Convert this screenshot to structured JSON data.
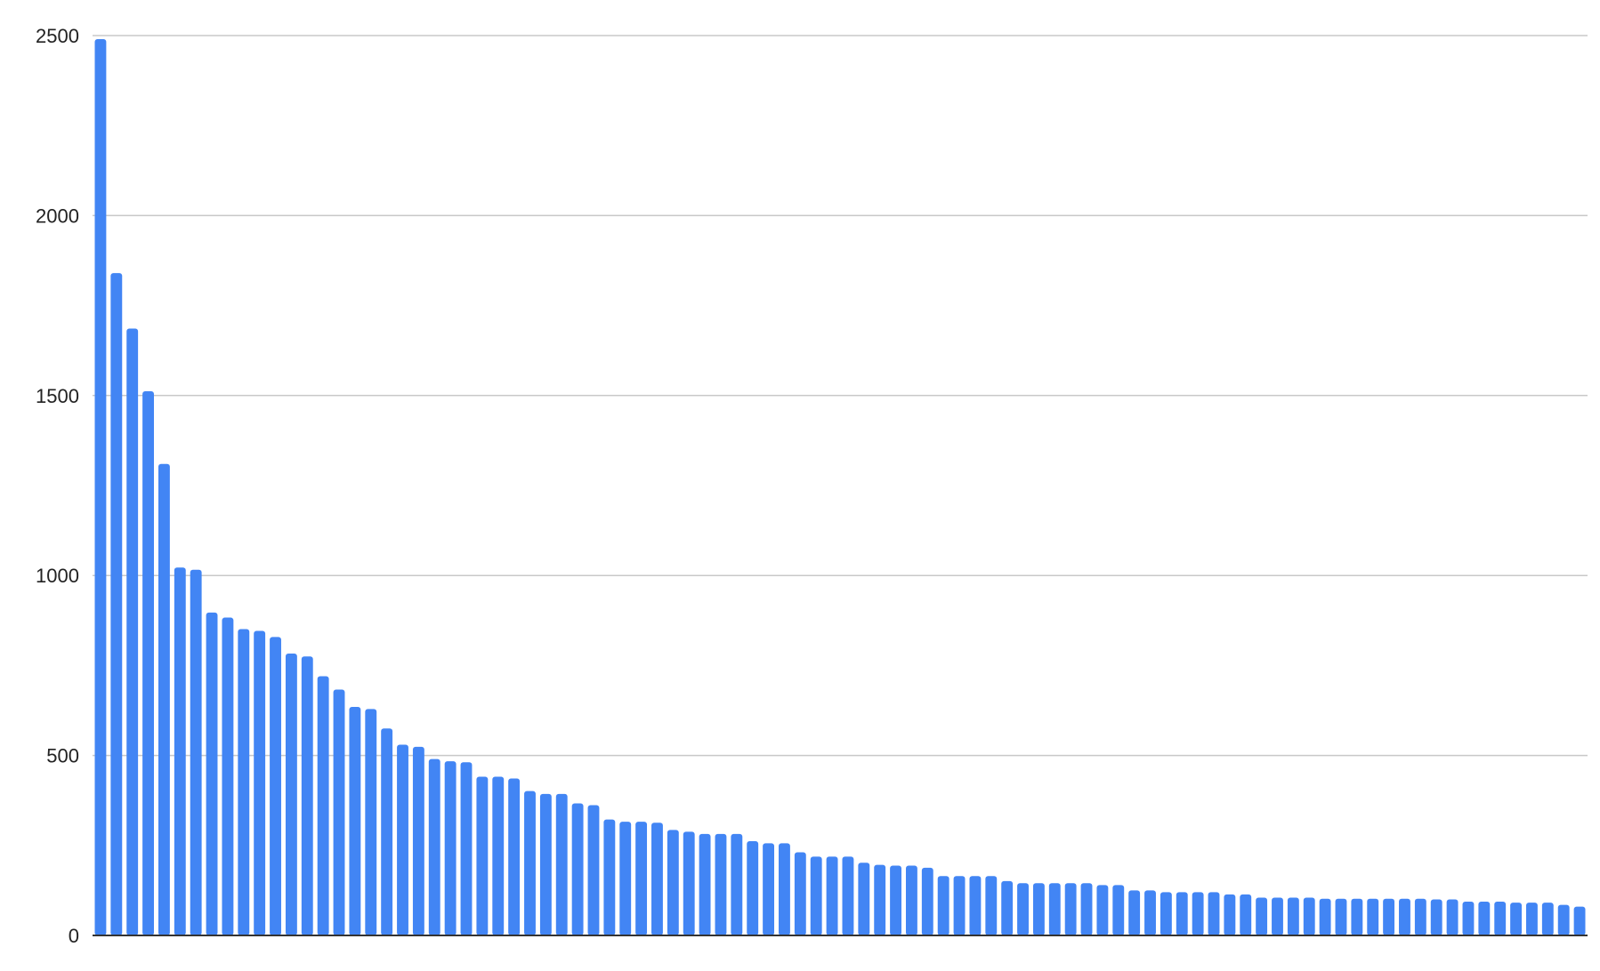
{
  "chart_data": {
    "type": "bar",
    "title": "",
    "xlabel": "",
    "ylabel": "",
    "ylim": [
      0,
      2500
    ],
    "yticks": [
      "0",
      "500",
      "1000",
      "1500",
      "2000",
      "2500"
    ],
    "grid": true,
    "legend": "none",
    "bar_color": "#4285F4",
    "values": [
      2490,
      1840,
      1686,
      1512,
      1310,
      1022,
      1016,
      897,
      883,
      851,
      846,
      829,
      783,
      775,
      720,
      683,
      635,
      629,
      575,
      530,
      524,
      490,
      484,
      481,
      441,
      441,
      436,
      401,
      393,
      393,
      367,
      362,
      322,
      316,
      316,
      313,
      293,
      288,
      282,
      282,
      282,
      262,
      256,
      256,
      231,
      219,
      219,
      219,
      202,
      196,
      194,
      194,
      188,
      165,
      165,
      165,
      165,
      151,
      145,
      145,
      145,
      145,
      145,
      140,
      140,
      125,
      125,
      120,
      120,
      120,
      120,
      114,
      114,
      105,
      105,
      105,
      105,
      102,
      102,
      102,
      102,
      102,
      102,
      102,
      100,
      100,
      94,
      94,
      94,
      91,
      91,
      91,
      85,
      80
    ]
  }
}
